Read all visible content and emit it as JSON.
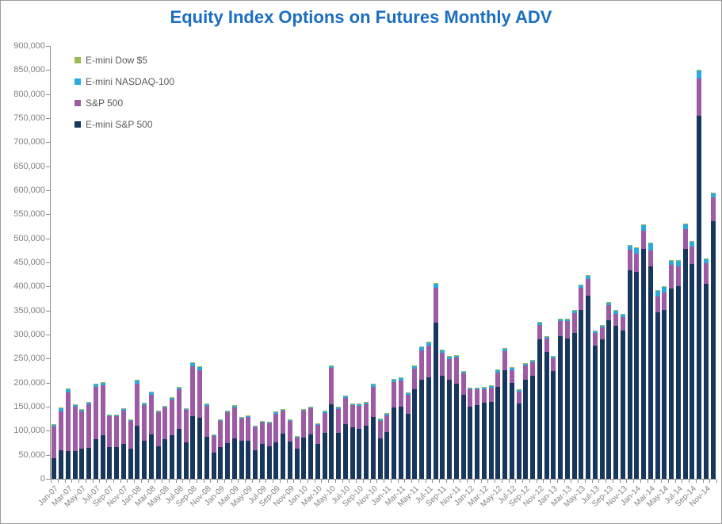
{
  "title": "Equity Index Options on Futures Monthly ADV",
  "title_color": "#1b6ec2",
  "legend": [
    {
      "label": "E-mini Dow $5",
      "color": "#9bbb59"
    },
    {
      "label": "E-mini NASDAQ-100",
      "color": "#2baae2"
    },
    {
      "label": "S&P 500",
      "color": "#9c5ba3"
    },
    {
      "label": "E-mini S&P 500",
      "color": "#17375d"
    }
  ],
  "chart_data": {
    "type": "bar",
    "stacked": true,
    "title": "Equity Index Options on Futures Monthly ADV",
    "xlabel": "",
    "ylabel": "",
    "ylim": [
      0,
      900000
    ],
    "ytick_step": 50000,
    "grid": false,
    "legend_position": "top-left",
    "x_label_every": 2,
    "categories": [
      "Jan-07",
      "Feb-07",
      "Mar-07",
      "Apr-07",
      "May-07",
      "Jun-07",
      "Jul-07",
      "Aug-07",
      "Sep-07",
      "Oct-07",
      "Nov-07",
      "Dec-07",
      "Jan-08",
      "Feb-08",
      "Mar-08",
      "Apr-08",
      "May-08",
      "Jun-08",
      "Jul-08",
      "Aug-08",
      "Sep-08",
      "Oct-08",
      "Nov-08",
      "Dec-08",
      "Jan-09",
      "Feb-09",
      "Mar-09",
      "Apr-09",
      "May-09",
      "Jun-09",
      "Jul-09",
      "Aug-09",
      "Sep-09",
      "Oct-09",
      "Nov-09",
      "Dec-09",
      "Jan-10",
      "Feb-10",
      "Mar-10",
      "Apr-10",
      "May-10",
      "Jun-10",
      "Jul-10",
      "Aug-10",
      "Sep-10",
      "Oct-10",
      "Nov-10",
      "Dec-10",
      "Jan-11",
      "Feb-11",
      "Mar-11",
      "Apr-11",
      "May-11",
      "Jun-11",
      "Jul-11",
      "Aug-11",
      "Sep-11",
      "Oct-11",
      "Nov-11",
      "Dec-11",
      "Jan-12",
      "Feb-12",
      "Mar-12",
      "Apr-12",
      "May-12",
      "Jun-12",
      "Jul-12",
      "Aug-12",
      "Sep-12",
      "Oct-12",
      "Nov-12",
      "Dec-12",
      "Jan-13",
      "Feb-13",
      "Mar-13",
      "Apr-13",
      "May-13",
      "Jun-13",
      "Jul-13",
      "Aug-13",
      "Sep-13",
      "Oct-13",
      "Nov-13",
      "Dec-13",
      "Jan-14",
      "Feb-14",
      "Mar-14",
      "Apr-14",
      "May-14",
      "Jun-14",
      "Jul-14",
      "Aug-14",
      "Sep-14",
      "Oct-14",
      "Nov-14",
      "Dec-14"
    ],
    "series": [
      {
        "name": "E-mini S&P 500",
        "color": "#17375d",
        "values": [
          43000,
          59000,
          58000,
          58000,
          63000,
          64000,
          82000,
          91000,
          66000,
          66000,
          73000,
          63000,
          110000,
          79000,
          92000,
          68000,
          82000,
          91000,
          104000,
          76000,
          130000,
          127000,
          87000,
          54000,
          66000,
          74000,
          84000,
          79000,
          79000,
          59000,
          72000,
          68000,
          76000,
          94000,
          77000,
          63000,
          86000,
          92000,
          72000,
          95000,
          155000,
          96000,
          114000,
          107000,
          104000,
          110000,
          129000,
          84000,
          98000,
          148000,
          150000,
          135000,
          186000,
          206000,
          211000,
          325000,
          215000,
          206000,
          198000,
          175000,
          150000,
          153000,
          158000,
          160000,
          191000,
          226000,
          199000,
          157000,
          206000,
          214000,
          290000,
          264000,
          224000,
          297000,
          292000,
          303000,
          351000,
          381000,
          277000,
          290000,
          330000,
          318000,
          308000,
          433000,
          430000,
          478000,
          442000,
          346000,
          351000,
          395000,
          400000,
          478000,
          447000,
          755000,
          405000,
          535000
        ]
      },
      {
        "name": "S&P 500",
        "color": "#9c5ba3",
        "values": [
          66500,
          81500,
          122000,
          91500,
          77500,
          91500,
          110000,
          103000,
          63500,
          63500,
          69500,
          57000,
          88000,
          74500,
          83000,
          70500,
          66500,
          74500,
          82000,
          67500,
          104000,
          99500,
          65000,
          35500,
          54500,
          64500,
          64000,
          46500,
          49500,
          48000,
          45000,
          48000,
          59500,
          47000,
          43500,
          23500,
          55000,
          54000,
          39500,
          42500,
          75000,
          49500,
          54500,
          45500,
          47500,
          44500,
          62500,
          37000,
          34500,
          53500,
          54000,
          40500,
          43500,
          61500,
          66000,
          71500,
          47500,
          42500,
          53500,
          43500,
          35500,
          32500,
          28500,
          29500,
          30500,
          39500,
          27500,
          24500,
          29500,
          27500,
          29500,
          27500,
          26500,
          30500,
          35500,
          41500,
          45500,
          34000,
          25500,
          24500,
          31500,
          25500,
          28500,
          43500,
          38500,
          38000,
          33500,
          33500,
          36500,
          49500,
          41500,
          41500,
          36000,
          78000,
          43500,
          49500
        ]
      },
      {
        "name": "E-mini NASDAQ-100",
        "color": "#2baae2",
        "values": [
          4000,
          7000,
          7000,
          5000,
          4000,
          4000,
          5000,
          6000,
          4000,
          4000,
          4000,
          3000,
          7000,
          4000,
          5000,
          3000,
          3000,
          4000,
          4000,
          3000,
          7000,
          6000,
          4000,
          2000,
          3000,
          3000,
          4000,
          3000,
          3000,
          2500,
          2500,
          2500,
          4000,
          3500,
          3000,
          2000,
          3500,
          3500,
          3000,
          4000,
          5000,
          4000,
          4000,
          4000,
          5000,
          5000,
          6000,
          3500,
          4000,
          5000,
          6000,
          4000,
          6000,
          7000,
          7000,
          9000,
          6000,
          6000,
          5000,
          5000,
          4000,
          4000,
          4000,
          4000,
          5000,
          6000,
          5000,
          4000,
          5000,
          5000,
          6000,
          5000,
          4000,
          5000,
          5000,
          6000,
          7000,
          8000,
          5000,
          5000,
          6000,
          7000,
          6000,
          9000,
          12000,
          12000,
          15000,
          12000,
          12000,
          10000,
          13000,
          11000,
          10000,
          17000,
          10000,
          10000
        ]
      },
      {
        "name": "E-mini Dow $5",
        "color": "#9bbb59",
        "values": [
          500,
          500,
          1000,
          500,
          500,
          500,
          1000,
          1000,
          500,
          500,
          500,
          1000,
          1000,
          500,
          1000,
          500,
          500,
          500,
          1000,
          500,
          2000,
          1500,
          1000,
          500,
          500,
          500,
          1000,
          500,
          500,
          500,
          500,
          500,
          500,
          500,
          500,
          500,
          500,
          500,
          500,
          500,
          1000,
          500,
          500,
          500,
          500,
          500,
          500,
          500,
          500,
          500,
          1000,
          500,
          500,
          500,
          1000,
          1500,
          500,
          500,
          500,
          500,
          500,
          500,
          500,
          500,
          500,
          500,
          500,
          500,
          500,
          500,
          500,
          500,
          500,
          500,
          500,
          500,
          500,
          1000,
          500,
          500,
          500,
          500,
          500,
          500,
          500,
          1000,
          500,
          500,
          500,
          500,
          500,
          500,
          2000,
          1000,
          500,
          500
        ]
      }
    ]
  }
}
